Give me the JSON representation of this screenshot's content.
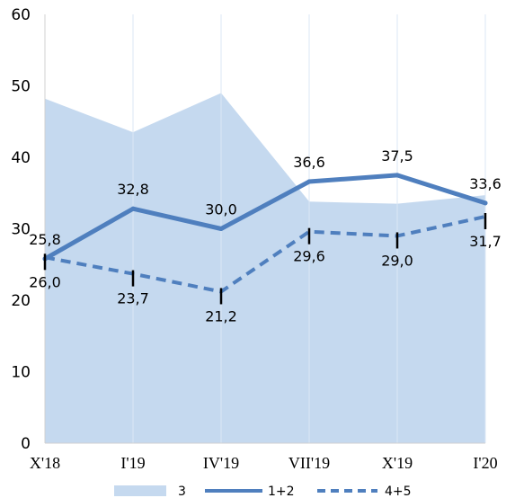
{
  "chart_data": {
    "type": "line",
    "categories": [
      "X'18",
      "I'19",
      "IV'19",
      "VII'19",
      "X'19",
      "I'20"
    ],
    "ylim": [
      0,
      60
    ],
    "yticks": [
      "0",
      "10",
      "20",
      "30",
      "40",
      "50",
      "60"
    ],
    "grid": "vertical",
    "legend_placement": "bottom",
    "series": [
      {
        "name": "3",
        "kind": "area",
        "color": "#c5d9ef",
        "values": [
          48.2,
          43.5,
          49.0,
          33.8,
          33.5,
          34.7
        ],
        "labels": [
          "",
          "",
          "",
          "",
          "",
          ""
        ]
      },
      {
        "name": "1+2",
        "kind": "solid",
        "color": "#4f7fbe",
        "values": [
          25.8,
          32.8,
          30.0,
          36.6,
          37.5,
          33.6
        ],
        "labels": [
          "25,8",
          "32,8",
          "30,0",
          "36,6",
          "37,5",
          "33,6"
        ]
      },
      {
        "name": "4+5",
        "kind": "dashed",
        "color": "#4f7fbe",
        "values": [
          26.0,
          23.7,
          21.2,
          29.6,
          29.0,
          31.7
        ],
        "labels": [
          "26,0",
          "23,7",
          "21,2",
          "29,6",
          "29,0",
          "31,7"
        ]
      }
    ]
  }
}
